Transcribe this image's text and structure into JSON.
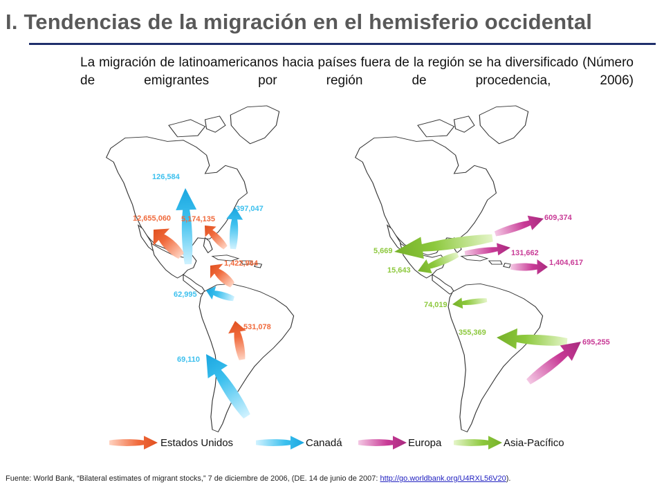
{
  "header": {
    "title": "I. Tendencias de la migración en el hemisferio occidental",
    "subtitle": "La migración de latinoamericanos hacia países fuera de la región se ha diversificado (Número de emigrantes por región de procedencia, 2006)"
  },
  "colors": {
    "estados_unidos": "#f06a3c",
    "canada": "#3cc0ee",
    "europa": "#c83a96",
    "asia_pacifico": "#8cc83c"
  },
  "left_map": {
    "labels": [
      {
        "text": "126,584",
        "dest": "canada"
      },
      {
        "text": "12,655,060",
        "dest": "estados_unidos"
      },
      {
        "text": "5,174,135",
        "dest": "estados_unidos"
      },
      {
        "text": "397,047",
        "dest": "canada"
      },
      {
        "text": "1,422,964",
        "dest": "estados_unidos"
      },
      {
        "text": "62,995",
        "dest": "canada"
      },
      {
        "text": "531,078",
        "dest": "estados_unidos"
      },
      {
        "text": "69,110",
        "dest": "canada"
      }
    ]
  },
  "right_map": {
    "labels": [
      {
        "text": "609,374",
        "dest": "europa"
      },
      {
        "text": "5,669",
        "dest": "asia_pacifico"
      },
      {
        "text": "131,662",
        "dest": "europa"
      },
      {
        "text": "15,643",
        "dest": "asia_pacifico"
      },
      {
        "text": "1,404,617",
        "dest": "europa"
      },
      {
        "text": "74,019",
        "dest": "asia_pacifico"
      },
      {
        "text": "355,369",
        "dest": "asia_pacifico"
      },
      {
        "text": "695,255",
        "dest": "europa"
      }
    ]
  },
  "legend": {
    "items": [
      {
        "label": "Estados Unidos",
        "dest": "estados_unidos"
      },
      {
        "label": "Canadá",
        "dest": "canada"
      },
      {
        "label": "Europa",
        "dest": "europa"
      },
      {
        "label": "Asia-Pacífico",
        "dest": "asia_pacifico"
      }
    ]
  },
  "footer": {
    "source_text": "Fuente: World Bank, “Bilateral estimates of migrant stocks,” 7 de diciembre de 2006, (DE. 14 de junio de 2007: ",
    "source_link": "http://go.worldbank.org/U4RXL56V20",
    "source_end": ")."
  }
}
